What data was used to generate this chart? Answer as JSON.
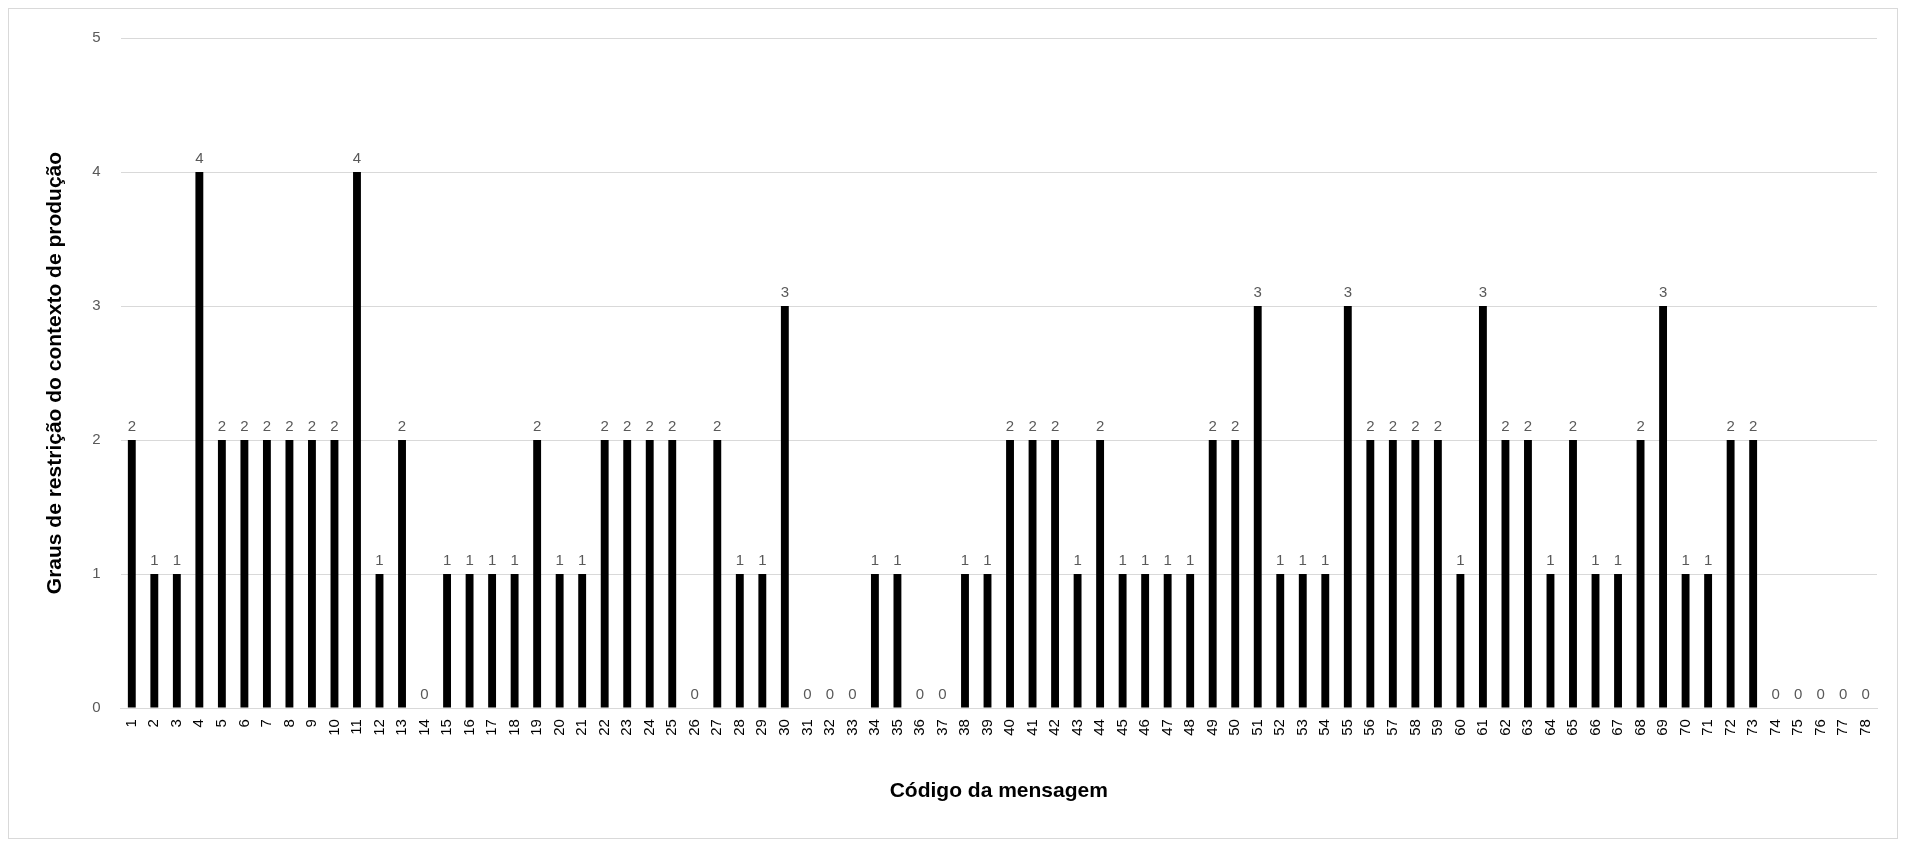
{
  "chart_data": {
    "type": "bar",
    "xlabel": "Código da mensagem",
    "ylabel": "Graus de restrição do contexto de produção",
    "categories": [
      "1",
      "2",
      "3",
      "4",
      "5",
      "6",
      "7",
      "8",
      "9",
      "10",
      "11",
      "12",
      "13",
      "14",
      "15",
      "16",
      "17",
      "18",
      "19",
      "20",
      "21",
      "22",
      "23",
      "24",
      "25",
      "26",
      "27",
      "28",
      "29",
      "30",
      "31",
      "32",
      "33",
      "34",
      "35",
      "36",
      "37",
      "38",
      "39",
      "40",
      "41",
      "42",
      "43",
      "44",
      "45",
      "46",
      "47",
      "48",
      "49",
      "50",
      "51",
      "52",
      "53",
      "54",
      "55",
      "56",
      "57",
      "58",
      "59",
      "60",
      "61",
      "62",
      "63",
      "64",
      "65",
      "66",
      "67",
      "68",
      "69",
      "70",
      "71",
      "72",
      "73",
      "74",
      "75",
      "76",
      "77",
      "78"
    ],
    "values": [
      2,
      1,
      1,
      4,
      2,
      2,
      2,
      2,
      2,
      2,
      4,
      1,
      2,
      0,
      1,
      1,
      1,
      1,
      2,
      1,
      1,
      2,
      2,
      2,
      2,
      0,
      2,
      1,
      1,
      3,
      0,
      0,
      0,
      1,
      1,
      0,
      0,
      1,
      1,
      2,
      2,
      2,
      1,
      2,
      1,
      1,
      1,
      1,
      2,
      2,
      3,
      1,
      1,
      1,
      3,
      2,
      2,
      2,
      2,
      1,
      3,
      2,
      2,
      1,
      2,
      1,
      1,
      2,
      3,
      1,
      1,
      2,
      2,
      0,
      0,
      0,
      0,
      0
    ],
    "color": "#000000",
    "ylim": [
      0,
      5
    ],
    "yticks": [
      0,
      1,
      2,
      3,
      4,
      5
    ],
    "grid": "y",
    "data_labels": true,
    "legend": false
  }
}
